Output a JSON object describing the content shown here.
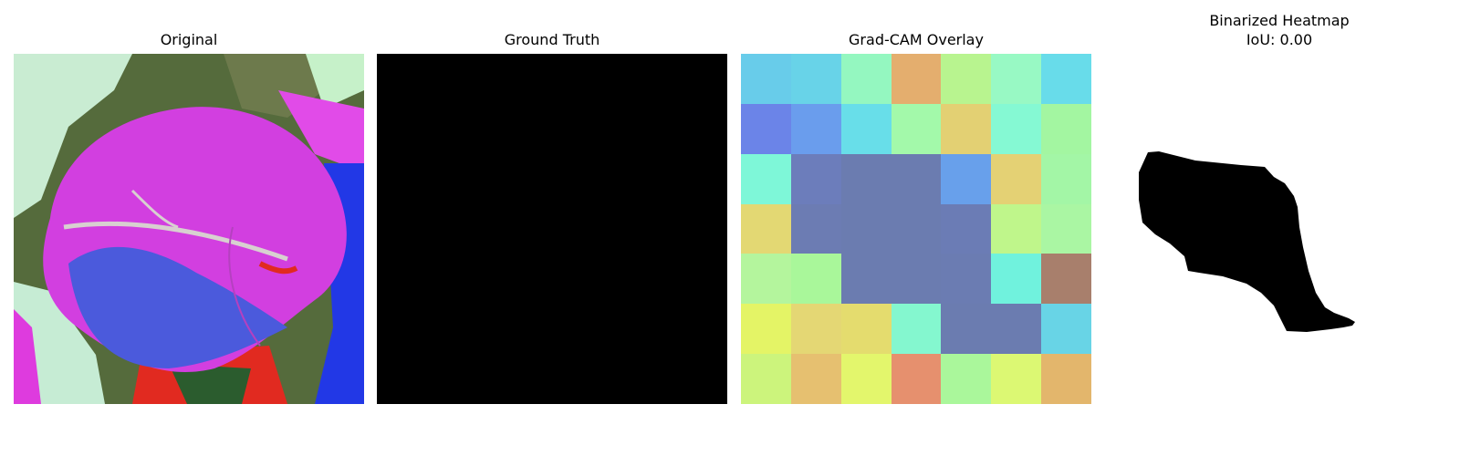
{
  "panels": [
    {
      "title": "Original"
    },
    {
      "title": "Ground Truth"
    },
    {
      "title": "Grad-CAM Overlay"
    },
    {
      "title": "Binarized Heatmap",
      "subtitle": "IoU: 0.00"
    }
  ],
  "gradcam_cells": [
    [
      "#68ccea",
      "#68d3e8",
      "#94f7c0",
      "#e4ae6e",
      "#b8f48f",
      "#98f9c4",
      "#68dcea"
    ],
    [
      "#6b84e8",
      "#6a9ded",
      "#68dee9",
      "#a3f9aa",
      "#e3d073",
      "#85f9d3",
      "#a3f6a1"
    ],
    [
      "#7ef7d8",
      "#6c7dbb",
      "#6b7cb0",
      "#6b7cb0",
      "#68a0eb",
      "#e4d174",
      "#a3f6a6"
    ],
    [
      "#e3d873",
      "#6c7cb3",
      "#6b7cb0",
      "#6b7cb0",
      "#6b7cb5",
      "#bff68b",
      "#aaf6a3"
    ],
    [
      "#b4f59d",
      "#a9f79a",
      "#6b7cb0",
      "#6b7cb0",
      "#6b7cb2",
      "#70f2dd",
      "#a87f6c"
    ],
    [
      "#e4f466",
      "#e4d774",
      "#e4dc6e",
      "#84f7cf",
      "#6b7cb0",
      "#6b7cb0",
      "#68d4e6"
    ],
    [
      "#ccf47c",
      "#e6c070",
      "#e3f66c",
      "#e6906e",
      "#aaf79b",
      "#dcf873",
      "#e3b66c"
    ]
  ]
}
